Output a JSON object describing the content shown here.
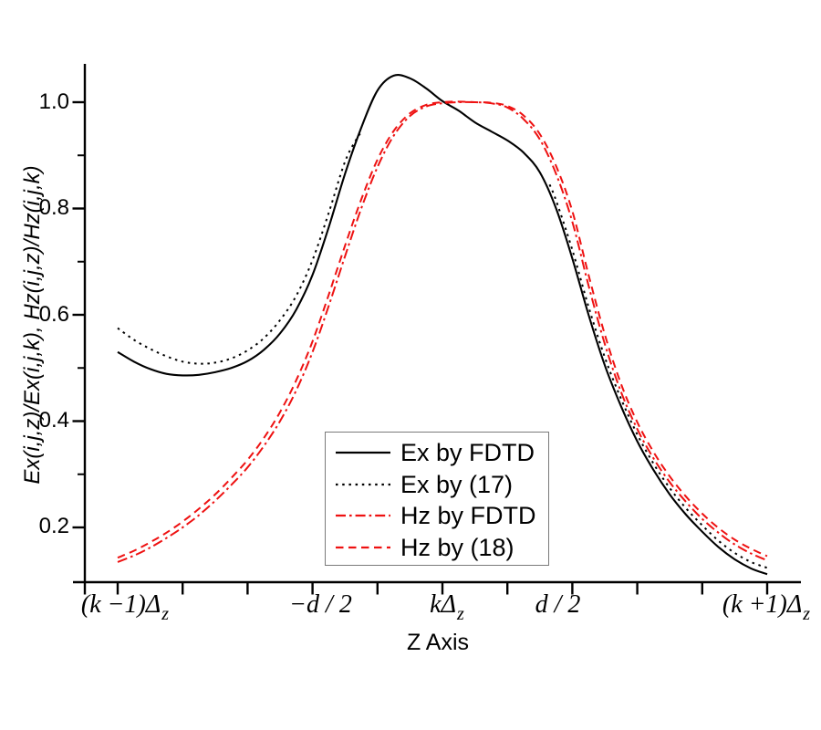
{
  "chart_data": {
    "type": "line",
    "title": "",
    "xlabel": "Z Axis",
    "ylabel": "Ex(i,j,z)/Ex(i,j,k), Hz(i,j,z)/Hz(i,j,k)",
    "x_tick_values": [
      -1.0,
      -0.4,
      0.0,
      0.4,
      1.0
    ],
    "x_tick_display": [
      {
        "main": "(k −1)Δ",
        "sub": "z"
      },
      {
        "main": "−d / 2",
        "sub": ""
      },
      {
        "main": "kΔ",
        "sub": "z"
      },
      {
        "main": "d / 2",
        "sub": ""
      },
      {
        "main": "(k +1)Δ",
        "sub": "z"
      }
    ],
    "x_minor_tick_step": 0.2,
    "x_range": [
      -1.1,
      1.1
    ],
    "y_tick_labels": [
      "1.0",
      "0.8",
      "0.6",
      "0.4",
      "0.2"
    ],
    "y_tick_values": [
      1.0,
      0.8,
      0.6,
      0.4,
      0.2
    ],
    "y_minor_tick_values": [
      0.9,
      0.7,
      0.5,
      0.3
    ],
    "y_range": [
      0.097,
      1.072
    ],
    "grid": false,
    "legend_position": "inside-bottom-center",
    "series": [
      {
        "name": "Ex by FDTD",
        "color": "#000000",
        "line_style": "solid",
        "segments": [
          [
            [
              -1.0,
              0.53
            ],
            [
              -0.95,
              0.512
            ],
            [
              -0.9,
              0.498
            ],
            [
              -0.85,
              0.489
            ],
            [
              -0.8,
              0.486
            ],
            [
              -0.75,
              0.487
            ],
            [
              -0.7,
              0.492
            ],
            [
              -0.65,
              0.5
            ],
            [
              -0.6,
              0.513
            ],
            [
              -0.55,
              0.534
            ],
            [
              -0.5,
              0.565
            ],
            [
              -0.45,
              0.61
            ],
            [
              -0.4,
              0.675
            ],
            [
              -0.35,
              0.765
            ],
            [
              -0.3,
              0.865
            ],
            [
              -0.25,
              0.952
            ],
            [
              -0.2,
              1.022
            ],
            [
              -0.15,
              1.05
            ],
            [
              -0.1,
              1.045
            ],
            [
              -0.05,
              1.026
            ],
            [
              0.0,
              1.002
            ],
            [
              0.05,
              0.984
            ],
            [
              0.1,
              0.962
            ],
            [
              0.15,
              0.945
            ],
            [
              0.2,
              0.928
            ],
            [
              0.25,
              0.905
            ],
            [
              0.3,
              0.868
            ],
            [
              0.35,
              0.8
            ],
            [
              0.4,
              0.706
            ],
            [
              0.45,
              0.6
            ],
            [
              0.5,
              0.505
            ],
            [
              0.55,
              0.428
            ],
            [
              0.6,
              0.362
            ],
            [
              0.65,
              0.308
            ],
            [
              0.7,
              0.262
            ],
            [
              0.75,
              0.224
            ],
            [
              0.8,
              0.192
            ],
            [
              0.85,
              0.163
            ],
            [
              0.9,
              0.14
            ],
            [
              0.95,
              0.123
            ],
            [
              1.0,
              0.112
            ]
          ]
        ]
      },
      {
        "name": "Ex by (17)",
        "color": "#000000",
        "line_style": "dotted",
        "segments": [
          [
            [
              -1.0,
              0.575
            ],
            [
              -0.95,
              0.553
            ],
            [
              -0.9,
              0.536
            ],
            [
              -0.85,
              0.522
            ],
            [
              -0.8,
              0.512
            ],
            [
              -0.75,
              0.508
            ],
            [
              -0.7,
              0.51
            ],
            [
              -0.65,
              0.518
            ],
            [
              -0.6,
              0.533
            ],
            [
              -0.55,
              0.556
            ],
            [
              -0.5,
              0.59
            ],
            [
              -0.45,
              0.636
            ],
            [
              -0.4,
              0.703
            ],
            [
              -0.35,
              0.792
            ],
            [
              -0.3,
              0.888
            ],
            [
              -0.26,
              0.935
            ],
            [
              -0.245,
              0.945
            ]
          ],
          [
            [
              0.33,
              0.845
            ],
            [
              0.35,
              0.815
            ],
            [
              0.4,
              0.722
            ],
            [
              0.45,
              0.615
            ],
            [
              0.5,
              0.52
            ],
            [
              0.55,
              0.442
            ],
            [
              0.6,
              0.375
            ],
            [
              0.65,
              0.32
            ],
            [
              0.7,
              0.274
            ],
            [
              0.75,
              0.236
            ],
            [
              0.8,
              0.204
            ],
            [
              0.85,
              0.175
            ],
            [
              0.9,
              0.152
            ],
            [
              0.95,
              0.135
            ],
            [
              1.0,
              0.124
            ]
          ]
        ]
      },
      {
        "name": "Hz by FDTD",
        "color": "#ee1111",
        "line_style": "dash-dot",
        "segments": [
          [
            [
              -1.0,
              0.135
            ],
            [
              -0.95,
              0.147
            ],
            [
              -0.9,
              0.162
            ],
            [
              -0.85,
              0.18
            ],
            [
              -0.8,
              0.2
            ],
            [
              -0.75,
              0.223
            ],
            [
              -0.7,
              0.25
            ],
            [
              -0.65,
              0.28
            ],
            [
              -0.6,
              0.313
            ],
            [
              -0.55,
              0.353
            ],
            [
              -0.5,
              0.4
            ],
            [
              -0.45,
              0.458
            ],
            [
              -0.4,
              0.53
            ],
            [
              -0.35,
              0.617
            ],
            [
              -0.3,
              0.71
            ],
            [
              -0.25,
              0.8
            ],
            [
              -0.2,
              0.878
            ],
            [
              -0.15,
              0.937
            ],
            [
              -0.1,
              0.974
            ],
            [
              -0.05,
              0.992
            ],
            [
              0.0,
              0.998
            ],
            [
              0.05,
              1.0
            ],
            [
              0.1,
              1.0
            ],
            [
              0.15,
              0.998
            ],
            [
              0.2,
              0.99
            ],
            [
              0.25,
              0.968
            ],
            [
              0.3,
              0.93
            ],
            [
              0.35,
              0.865
            ],
            [
              0.4,
              0.775
            ],
            [
              0.45,
              0.655
            ],
            [
              0.5,
              0.545
            ],
            [
              0.55,
              0.455
            ],
            [
              0.6,
              0.385
            ],
            [
              0.65,
              0.33
            ],
            [
              0.7,
              0.285
            ],
            [
              0.75,
              0.248
            ],
            [
              0.8,
              0.216
            ],
            [
              0.85,
              0.19
            ],
            [
              0.9,
              0.168
            ],
            [
              0.95,
              0.151
            ],
            [
              1.0,
              0.138
            ]
          ]
        ]
      },
      {
        "name": "Hz by (18)",
        "color": "#ee1111",
        "line_style": "dashed",
        "segments": [
          [
            [
              -1.0,
              0.143
            ],
            [
              -0.95,
              0.156
            ],
            [
              -0.9,
              0.172
            ],
            [
              -0.85,
              0.19
            ],
            [
              -0.8,
              0.211
            ],
            [
              -0.75,
              0.235
            ],
            [
              -0.7,
              0.262
            ],
            [
              -0.65,
              0.293
            ],
            [
              -0.6,
              0.327
            ],
            [
              -0.55,
              0.368
            ],
            [
              -0.5,
              0.417
            ],
            [
              -0.45,
              0.477
            ],
            [
              -0.4,
              0.55
            ],
            [
              -0.35,
              0.638
            ],
            [
              -0.3,
              0.73
            ],
            [
              -0.25,
              0.817
            ],
            [
              -0.2,
              0.892
            ],
            [
              -0.15,
              0.946
            ],
            [
              -0.1,
              0.979
            ],
            [
              -0.05,
              0.995
            ],
            [
              0.0,
              1.0
            ],
            [
              0.05,
              1.001
            ],
            [
              0.1,
              1.0
            ],
            [
              0.15,
              0.999
            ],
            [
              0.2,
              0.993
            ],
            [
              0.25,
              0.975
            ],
            [
              0.3,
              0.94
            ],
            [
              0.35,
              0.88
            ],
            [
              0.4,
              0.795
            ],
            [
              0.45,
              0.675
            ],
            [
              0.5,
              0.563
            ],
            [
              0.55,
              0.47
            ],
            [
              0.6,
              0.398
            ],
            [
              0.65,
              0.342
            ],
            [
              0.7,
              0.296
            ],
            [
              0.75,
              0.258
            ],
            [
              0.8,
              0.226
            ],
            [
              0.85,
              0.199
            ],
            [
              0.9,
              0.177
            ],
            [
              0.95,
              0.16
            ],
            [
              1.0,
              0.146
            ]
          ]
        ]
      }
    ]
  }
}
